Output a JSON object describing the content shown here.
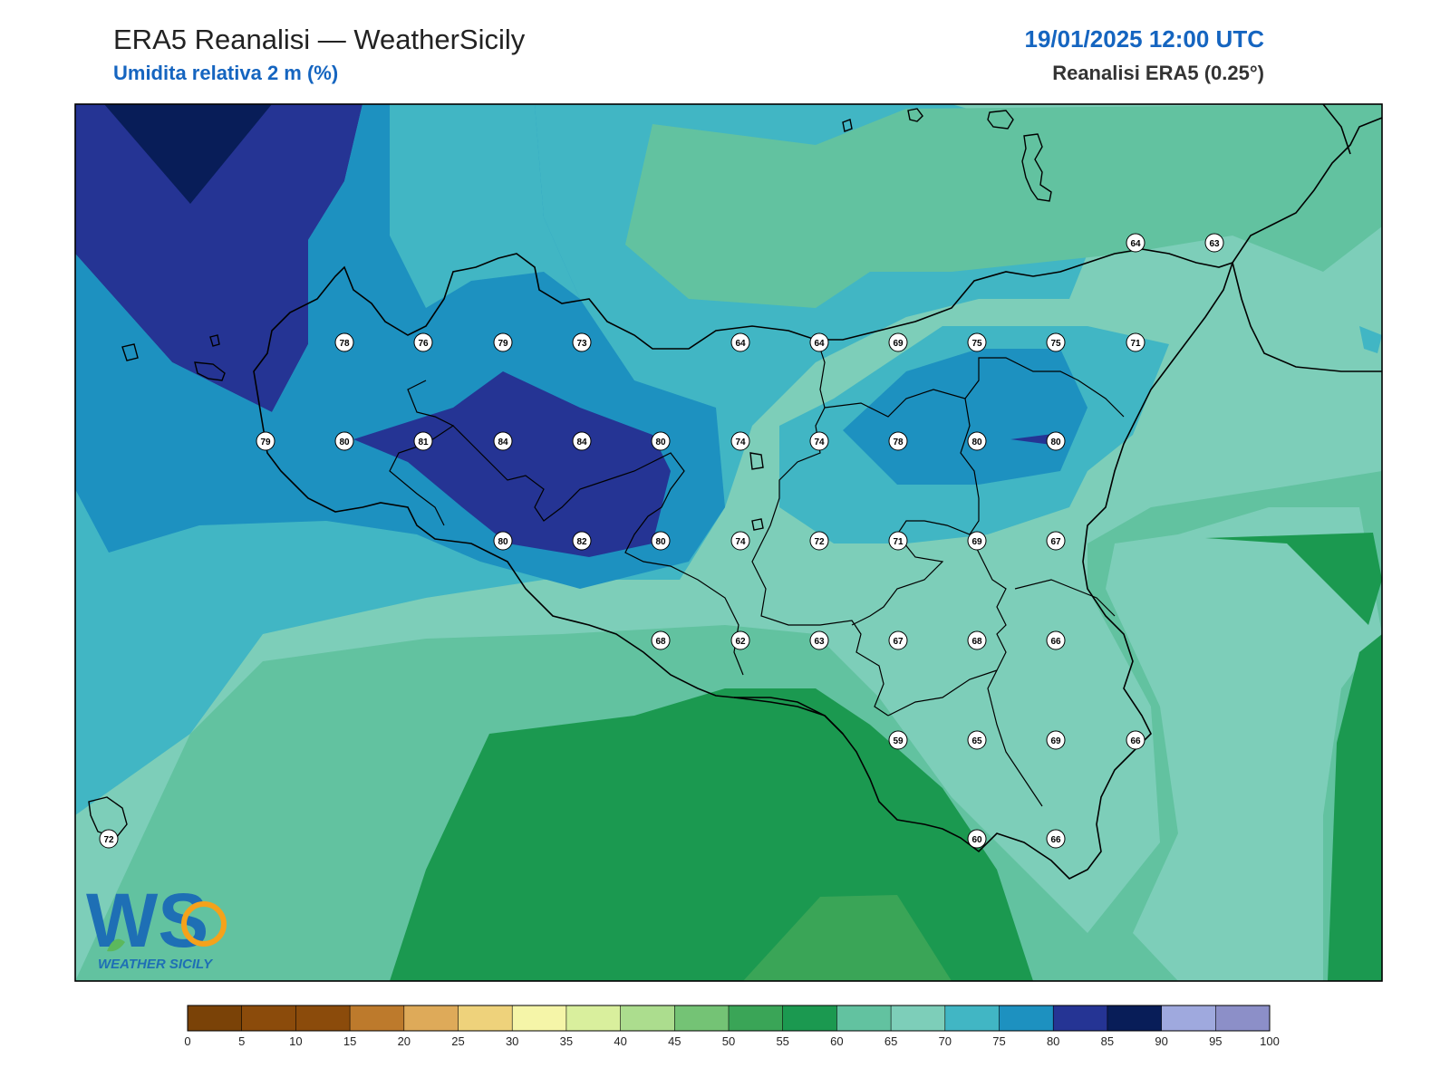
{
  "header": {
    "title": "ERA5 Reanalisi — WeatherSicily",
    "subtitle": "Umidita relativa 2 m (%)",
    "datetime": "19/01/2025 12:00 UTC",
    "source": "Reanalisi ERA5 (0.25°)"
  },
  "logo": {
    "letters": "WS",
    "text": "WEATHER SICILY"
  },
  "colorbar": {
    "ticks": [
      "0",
      "5",
      "10",
      "15",
      "20",
      "25",
      "30",
      "35",
      "40",
      "45",
      "50",
      "55",
      "60",
      "65",
      "70",
      "75",
      "80",
      "85",
      "90",
      "95",
      "100"
    ],
    "colors": [
      "#7a4207",
      "#8b4b0b",
      "#8b4b0b",
      "#bd7a2c",
      "#deaa59",
      "#eed27b",
      "#f5f5a8",
      "#d9ef9d",
      "#acdd8e",
      "#74c375",
      "#3aa557",
      "#1b9950",
      "#62c2a0",
      "#7dceb9",
      "#41b6c4",
      "#1d91c0",
      "#253494",
      "#081d58",
      "#9fa9de",
      "#8c8fc8"
    ]
  },
  "stations": [
    {
      "value": "78"
    },
    {
      "value": "76"
    },
    {
      "value": "79"
    },
    {
      "value": "73"
    },
    {
      "value": "64"
    },
    {
      "value": "64"
    },
    {
      "value": "69"
    },
    {
      "value": "75"
    },
    {
      "value": "75"
    },
    {
      "value": "71"
    },
    {
      "value": "79"
    },
    {
      "value": "80"
    },
    {
      "value": "81"
    },
    {
      "value": "84"
    },
    {
      "value": "84"
    },
    {
      "value": "80"
    },
    {
      "value": "74"
    },
    {
      "value": "74"
    },
    {
      "value": "78"
    },
    {
      "value": "80"
    },
    {
      "value": "80"
    },
    {
      "value": "80"
    },
    {
      "value": "82"
    },
    {
      "value": "80"
    },
    {
      "value": "74"
    },
    {
      "value": "72"
    },
    {
      "value": "71"
    },
    {
      "value": "69"
    },
    {
      "value": "67"
    },
    {
      "value": "68"
    },
    {
      "value": "62"
    },
    {
      "value": "63"
    },
    {
      "value": "67"
    },
    {
      "value": "68"
    },
    {
      "value": "66"
    },
    {
      "value": "59"
    },
    {
      "value": "65"
    },
    {
      "value": "69"
    },
    {
      "value": "66"
    },
    {
      "value": "60"
    },
    {
      "value": "66"
    },
    {
      "value": "64"
    },
    {
      "value": "63"
    },
    {
      "value": "72"
    }
  ]
}
